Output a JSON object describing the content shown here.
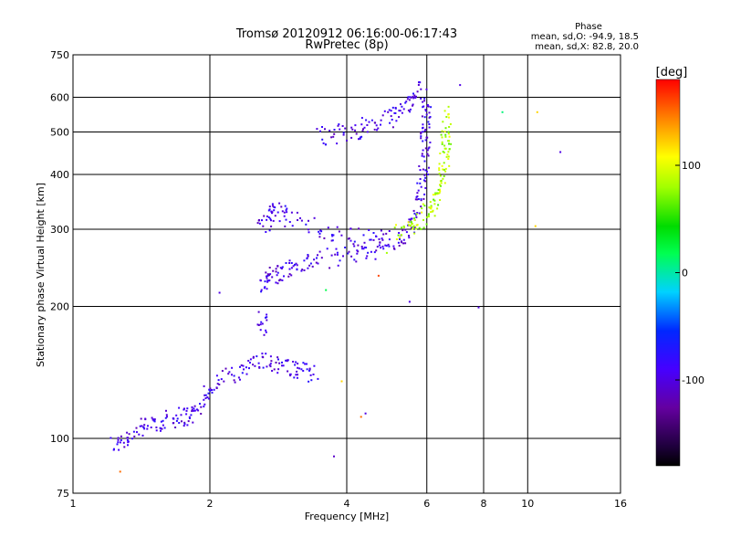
{
  "chart_data": {
    "type": "scatter",
    "title": "Tromsø 20120912 06:16:00-06:17:43",
    "subtitle": "RwPretec (8p)",
    "xlabel": "Frequency [MHz]",
    "ylabel": "Stationary phase Virtual Height [km]",
    "x_scale": "log",
    "y_scale": "log",
    "xlim": [
      1,
      16
    ],
    "ylim": [
      75,
      750
    ],
    "x_ticks": [
      1,
      2,
      4,
      6,
      8,
      10,
      16
    ],
    "x_tick_labels": [
      "1",
      "2",
      "4",
      "6",
      "8",
      "10",
      "16"
    ],
    "y_ticks": [
      75,
      100,
      200,
      300,
      400,
      500,
      600,
      750
    ],
    "y_tick_labels": [
      "75",
      "100",
      "200",
      "300",
      "400",
      "500",
      "600",
      "750"
    ],
    "grid_x": [
      2,
      4,
      6,
      8,
      10
    ],
    "grid_y": [
      100,
      200,
      300,
      400,
      500,
      600
    ],
    "grid": true,
    "stats": {
      "heading": "Phase",
      "line_o": "mean, sd,O: -94.9, 18.5",
      "line_x": "mean, sd,X:  82.8, 20.0"
    },
    "colorbar": {
      "label": "[deg]",
      "range": [
        -180,
        180
      ],
      "tick_values": [
        100,
        0,
        -100
      ],
      "tick_labels": [
        "100",
        "0",
        "-100"
      ]
    },
    "traces": [
      {
        "phase": -95,
        "points": [
          [
            1.22,
            96
          ],
          [
            1.3,
            100
          ],
          [
            1.4,
            105
          ],
          [
            1.5,
            108
          ],
          [
            1.6,
            110
          ],
          [
            1.7,
            112
          ],
          [
            1.8,
            113
          ],
          [
            1.9,
            115
          ]
        ]
      },
      {
        "phase": -95,
        "points": [
          [
            1.9,
            120
          ],
          [
            2.0,
            130
          ],
          [
            2.2,
            140
          ],
          [
            2.4,
            145
          ],
          [
            2.6,
            150
          ],
          [
            2.8,
            148
          ],
          [
            3.0,
            145
          ],
          [
            3.2,
            142
          ],
          [
            3.4,
            140
          ]
        ]
      },
      {
        "phase": -95,
        "points": [
          [
            2.6,
            180
          ],
          [
            2.62,
            190
          ]
        ]
      },
      {
        "phase": -95,
        "points": [
          [
            2.6,
            225
          ],
          [
            2.7,
            232
          ],
          [
            2.8,
            238
          ],
          [
            3.0,
            244
          ],
          [
            3.2,
            250
          ],
          [
            3.5,
            256
          ],
          [
            4.0,
            262
          ],
          [
            4.5,
            268
          ],
          [
            5.0,
            276
          ],
          [
            5.4,
            290
          ],
          [
            5.6,
            310
          ],
          [
            5.8,
            350
          ],
          [
            5.9,
            400
          ],
          [
            5.95,
            450
          ],
          [
            5.97,
            500
          ],
          [
            5.98,
            550
          ],
          [
            6.0,
            600
          ]
        ]
      },
      {
        "phase": -95,
        "points": [
          [
            2.6,
            300
          ],
          [
            2.7,
            320
          ],
          [
            2.8,
            330
          ],
          [
            3.0,
            320
          ],
          [
            3.5,
            300
          ],
          [
            4.0,
            290
          ],
          [
            4.5,
            285
          ],
          [
            5.0,
            285
          ]
        ]
      },
      {
        "phase": -95,
        "points": [
          [
            3.5,
            490
          ],
          [
            3.8,
            495
          ],
          [
            4.2,
            505
          ],
          [
            4.6,
            520
          ],
          [
            5.0,
            540
          ],
          [
            5.3,
            570
          ],
          [
            5.6,
            600
          ],
          [
            5.8,
            630
          ]
        ]
      },
      {
        "phase": 83,
        "points": [
          [
            5.2,
            295
          ],
          [
            5.5,
            305
          ],
          [
            5.8,
            315
          ],
          [
            6.1,
            330
          ],
          [
            6.3,
            350
          ],
          [
            6.45,
            380
          ],
          [
            6.55,
            420
          ],
          [
            6.6,
            460
          ],
          [
            6.62,
            500
          ],
          [
            6.63,
            560
          ]
        ]
      }
    ],
    "outliers": [
      {
        "x": 1.27,
        "y": 84,
        "phase": 150
      },
      {
        "x": 3.75,
        "y": 91,
        "phase": -110
      },
      {
        "x": 4.3,
        "y": 112,
        "phase": 150
      },
      {
        "x": 4.4,
        "y": 114,
        "phase": -100
      },
      {
        "x": 3.9,
        "y": 135,
        "phase": 120
      },
      {
        "x": 4.7,
        "y": 235,
        "phase": 160
      },
      {
        "x": 4.9,
        "y": 265,
        "phase": 80
      },
      {
        "x": 5.5,
        "y": 205,
        "phase": -100
      },
      {
        "x": 7.8,
        "y": 199,
        "phase": -100
      },
      {
        "x": 8.8,
        "y": 555,
        "phase": 10
      },
      {
        "x": 10.5,
        "y": 555,
        "phase": 120
      },
      {
        "x": 10.4,
        "y": 305,
        "phase": 120
      },
      {
        "x": 11.8,
        "y": 450,
        "phase": -100
      },
      {
        "x": 7.1,
        "y": 640,
        "phase": -100
      },
      {
        "x": 2.1,
        "y": 215,
        "phase": -100
      },
      {
        "x": 3.6,
        "y": 218,
        "phase": 20
      }
    ]
  }
}
